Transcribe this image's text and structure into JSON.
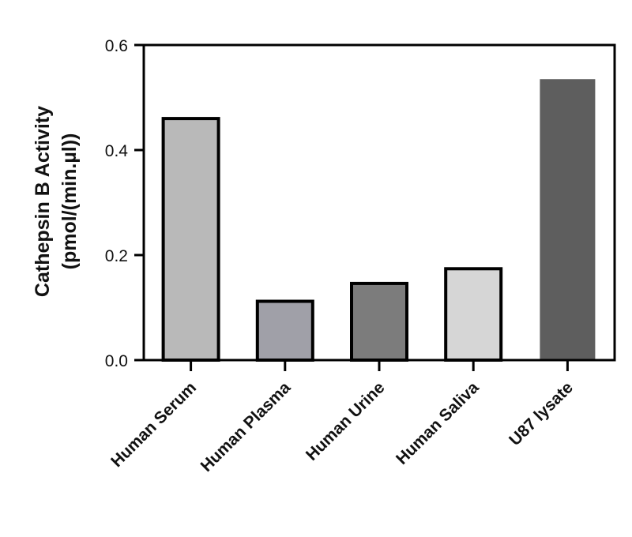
{
  "chart_data": {
    "type": "bar",
    "title": "",
    "xlabel": "",
    "ylabel_lines": [
      "Cathepsin B Activity",
      "(pmol/(min.µl))"
    ],
    "categories": [
      "Human Serum",
      "Human Plasma",
      "Human Urine",
      "Human Saliva",
      "U87 lysate"
    ],
    "values": [
      0.46,
      0.112,
      0.146,
      0.174,
      0.535
    ],
    "colors": [
      "#b9b9b9",
      "#a0a0a8",
      "#7c7c7c",
      "#d6d6d6",
      "#5e5e5e"
    ],
    "outlined": [
      true,
      true,
      true,
      true,
      false
    ],
    "ylim": [
      0,
      0.6
    ],
    "yticks": [
      0,
      0.2,
      0.4,
      0.6
    ],
    "ytick_labels": [
      "0.0",
      "0.2",
      "0.4",
      "0.6"
    ],
    "grid": false,
    "legend": "none"
  }
}
